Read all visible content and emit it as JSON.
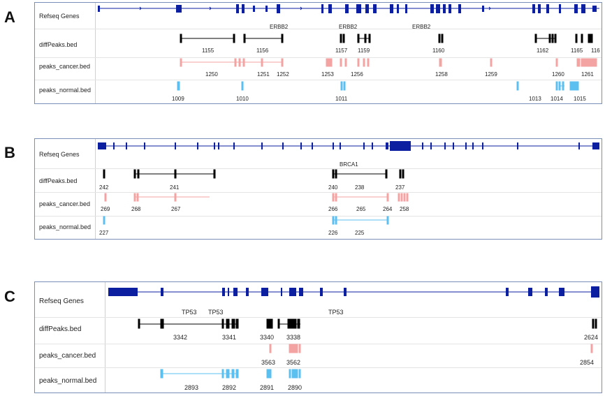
{
  "colors": {
    "refseq": "#0b1fa0",
    "diff": "#000000",
    "cancer": "#f4a3a3",
    "normal": "#5bc0f0"
  },
  "panels": [
    {
      "letter": "A",
      "rows": [
        "Refseq Genes",
        "diffPeaks.bed",
        "peaks_cancer.bed",
        "peaks_normal.bed"
      ],
      "gene_labels": [
        "ERBB2",
        "ERBB2",
        "ERBB2"
      ],
      "diff_labels": [
        "1155",
        "1156",
        "1157",
        "1159",
        "1160",
        "1162",
        "1165",
        "116"
      ],
      "cancer_labels": [
        "1250",
        "1251",
        "1252",
        "1253",
        "1256",
        "1258",
        "1259",
        "1260",
        "1261"
      ],
      "normal_labels": [
        "1009",
        "1010",
        "1011",
        "1013",
        "1014",
        "1015"
      ]
    },
    {
      "letter": "B",
      "rows": [
        "Refseq Genes",
        "diffPeaks.bed",
        "peaks_cancer.bed",
        "peaks_normal.bed"
      ],
      "gene_labels": [
        "BRCA1"
      ],
      "diff_labels": [
        "242",
        "241",
        "240",
        "238",
        "237"
      ],
      "cancer_labels": [
        "269",
        "268",
        "267",
        "266",
        "265",
        "264",
        "258"
      ],
      "normal_labels": [
        "227",
        "226",
        "225"
      ]
    },
    {
      "letter": "C",
      "rows": [
        "Refseq Genes",
        "diffPeaks.bed",
        "peaks_cancer.bed",
        "peaks_normal.bed"
      ],
      "gene_labels": [
        "TP53",
        "TP53",
        "TP53"
      ],
      "diff_labels": [
        "3342",
        "3341",
        "3340",
        "3338",
        "2624"
      ],
      "cancer_labels": [
        "3563",
        "3562",
        "2854"
      ],
      "normal_labels": [
        "2893",
        "2892",
        "2891",
        "2890"
      ]
    }
  ]
}
